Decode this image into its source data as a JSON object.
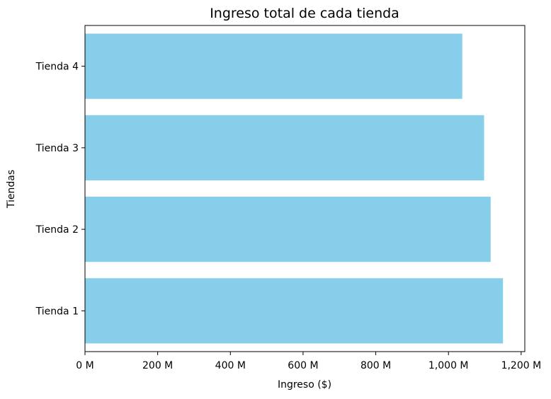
{
  "chart_data": {
    "type": "bar",
    "orientation": "horizontal",
    "title": "Ingreso total de cada tienda",
    "xlabel": "Ingreso ($)",
    "ylabel": "Tiendas",
    "categories": [
      "Tienda 1",
      "Tienda 2",
      "Tienda 3",
      "Tienda 4"
    ],
    "values": [
      1150000000,
      1116000000,
      1098000000,
      1038000000
    ],
    "xlim": [
      0,
      1210000000
    ],
    "xticks": [
      0,
      200000000,
      400000000,
      600000000,
      800000000,
      1000000000,
      1200000000
    ],
    "xtick_labels": [
      "0 M",
      "200 M",
      "400 M",
      "600 M",
      "800 M",
      "1,000 M",
      "1,200 M"
    ],
    "bar_color": "#87ceeb",
    "grid": false,
    "legend": "none"
  }
}
